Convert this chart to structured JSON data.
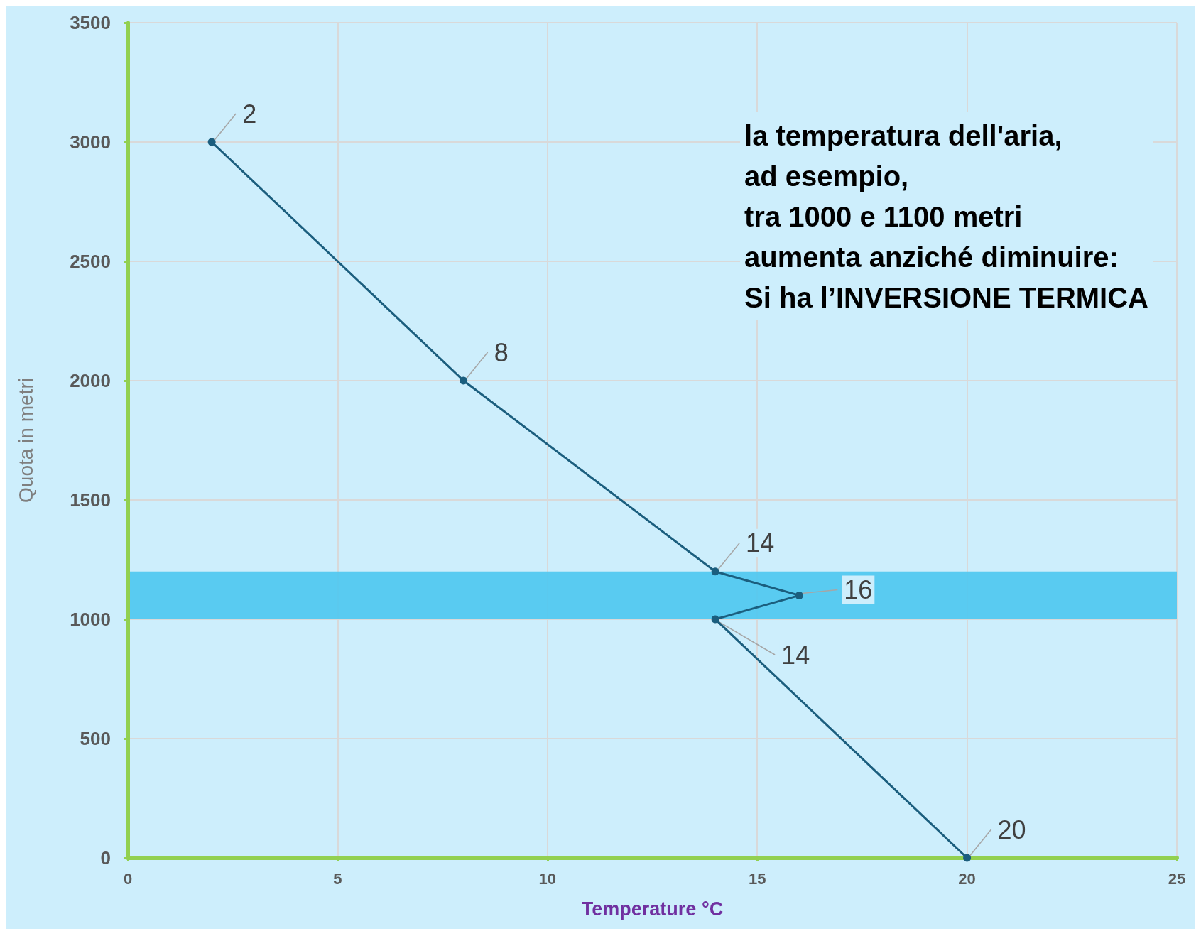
{
  "chart_data": {
    "type": "line",
    "xlabel": "Temperature °C",
    "ylabel": "Quota in metri",
    "x": [
      2,
      8,
      14,
      16,
      14,
      20
    ],
    "values": [
      3000,
      2000,
      1200,
      1100,
      1000,
      0
    ],
    "color": "#1b5e7e",
    "marker": "circle",
    "line_style": "solid",
    "grid": true,
    "xlim": [
      0,
      25
    ],
    "xticks": [
      0,
      5,
      10,
      15,
      20,
      25
    ],
    "ylim": [
      0,
      3500
    ],
    "yticks": [
      0,
      500,
      1000,
      1500,
      2000,
      2500,
      3000,
      3500
    ],
    "bands": [
      {
        "axis": "y",
        "from": 1000,
        "to": 1200,
        "color": "#4dc6f0"
      }
    ],
    "annotations": [
      {
        "text": "2",
        "x": 2,
        "y": 3000
      },
      {
        "text": "8",
        "x": 8,
        "y": 2000
      },
      {
        "text": "14",
        "x": 14,
        "y": 1200
      },
      {
        "text": "16",
        "x": 16,
        "y": 1100
      },
      {
        "text": "14",
        "x": 14,
        "y": 1000
      },
      {
        "text": "20",
        "x": 20,
        "y": 0
      },
      "la temperatura dell'aria,\nad esempio,\ntra 1000 e 1100 metri\naumenta anziché diminuire:\nSi ha l’INVERSIONE TERMICA"
    ]
  }
}
